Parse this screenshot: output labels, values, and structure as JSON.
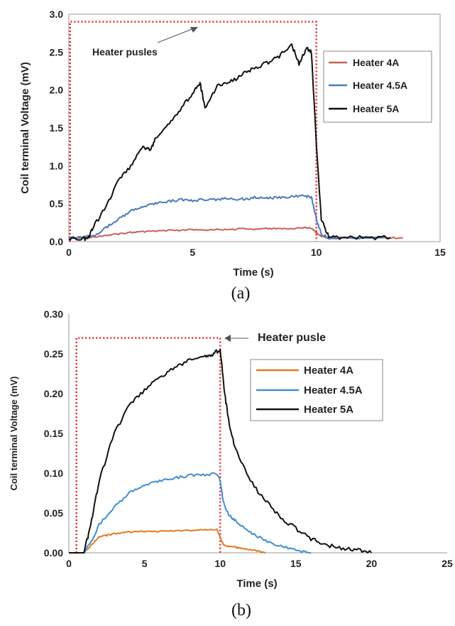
{
  "chart_data": [
    {
      "type": "line",
      "caption": "(a)",
      "xlabel": "Time (s)",
      "ylabel": "Coil terminal Voltage (mV)",
      "xlim": [
        0,
        15
      ],
      "ylim": [
        0,
        3.0
      ],
      "xticks": [
        0,
        5,
        10,
        15
      ],
      "yticks": [
        0.0,
        0.5,
        1.0,
        1.5,
        2.0,
        2.5,
        3.0
      ],
      "xtick_labels": [
        "0",
        "5",
        "10",
        "15"
      ],
      "ytick_labels": [
        "0.0",
        "0.5",
        "1.0",
        "1.5",
        "2.0",
        "2.5",
        "3.0"
      ],
      "legend_position": "right",
      "annotation": "Heater pusles",
      "pulse": {
        "x": [
          0.05,
          0.05,
          10.0,
          10.0
        ],
        "y": [
          0,
          2.9,
          2.9,
          0
        ],
        "color": "#e8262c"
      },
      "series": [
        {
          "name": "Heater 4A",
          "color": "#c8625a",
          "x": [
            0,
            0.5,
            1,
            1.5,
            2,
            2.5,
            3,
            3.5,
            4,
            4.5,
            5,
            5.5,
            6,
            6.5,
            7,
            7.5,
            8,
            8.5,
            9,
            9.5,
            9.8,
            10.0,
            10.2,
            10.5,
            11,
            12,
            13,
            13.5
          ],
          "y": [
            0.05,
            0.05,
            0.06,
            0.08,
            0.1,
            0.12,
            0.13,
            0.14,
            0.15,
            0.15,
            0.16,
            0.15,
            0.16,
            0.16,
            0.17,
            0.16,
            0.17,
            0.17,
            0.17,
            0.18,
            0.18,
            0.12,
            0.07,
            0.05,
            0.05,
            0.05,
            0.05,
            0.05
          ]
        },
        {
          "name": "Heater 4.5A",
          "color": "#4a7bbd",
          "x": [
            0,
            0.5,
            1,
            1.5,
            2,
            2.5,
            3,
            3.5,
            4,
            4.5,
            5,
            5.5,
            6,
            6.5,
            7,
            7.5,
            8,
            8.5,
            9,
            9.5,
            9.8,
            10.0,
            10.2,
            10.5,
            11,
            12,
            13
          ],
          "y": [
            0.05,
            0.05,
            0.08,
            0.18,
            0.3,
            0.4,
            0.46,
            0.5,
            0.53,
            0.55,
            0.54,
            0.56,
            0.55,
            0.57,
            0.56,
            0.58,
            0.57,
            0.58,
            0.59,
            0.6,
            0.59,
            0.3,
            0.1,
            0.05,
            0.05,
            0.05,
            0.05
          ]
        },
        {
          "name": "Heater 5A",
          "color": "#111111",
          "x": [
            0,
            0.5,
            0.8,
            1,
            1.5,
            2,
            2.5,
            3,
            3.3,
            3.5,
            4,
            4.5,
            5,
            5.3,
            5.5,
            6,
            6.5,
            7,
            7.5,
            8,
            8.5,
            9,
            9.3,
            9.6,
            9.8,
            10.0,
            10.2,
            10.5,
            11,
            12,
            13
          ],
          "y": [
            0.03,
            0.03,
            0.05,
            0.2,
            0.45,
            0.8,
            1.0,
            1.25,
            1.2,
            1.35,
            1.55,
            1.75,
            1.95,
            2.1,
            1.75,
            2.05,
            2.1,
            2.2,
            2.3,
            2.35,
            2.45,
            2.6,
            2.35,
            2.55,
            2.5,
            1.3,
            0.3,
            0.06,
            0.05,
            0.05,
            0.05
          ]
        }
      ]
    },
    {
      "type": "line",
      "caption": "(b)",
      "xlabel": "Time (s)",
      "ylabel": "Coil terminal Voltage (mV)",
      "xlim": [
        0,
        25
      ],
      "ylim": [
        0,
        0.3
      ],
      "xticks": [
        0,
        5,
        10,
        15,
        20,
        25
      ],
      "yticks": [
        0.0,
        0.05,
        0.1,
        0.15,
        0.2,
        0.25,
        0.3
      ],
      "xtick_labels": [
        "0",
        "5",
        "10",
        "15",
        "20",
        "25"
      ],
      "ytick_labels": [
        "0.00",
        "0.05",
        "0.10",
        "0.15",
        "0.20",
        "0.25",
        "0.30"
      ],
      "legend_position": "right",
      "annotation": "Heater pusle",
      "pulse": {
        "x": [
          0.5,
          0.5,
          10.0,
          10.0
        ],
        "y": [
          0,
          0.27,
          0.27,
          0
        ],
        "color": "#e8262c"
      },
      "series": [
        {
          "name": "Heater 4A",
          "color": "#e07b24",
          "x": [
            0,
            1,
            1.5,
            2,
            2.5,
            3,
            4,
            5,
            6,
            7,
            8,
            9,
            9.8,
            10.0,
            10.2,
            10.5,
            11,
            11.5,
            12,
            12.5,
            13
          ],
          "y": [
            0,
            0,
            0.01,
            0.02,
            0.022,
            0.024,
            0.026,
            0.027,
            0.027,
            0.028,
            0.028,
            0.029,
            0.029,
            0.02,
            0.01,
            0.008,
            0.007,
            0.005,
            0.004,
            0.002,
            0.0
          ]
        },
        {
          "name": "Heater 4.5A",
          "color": "#3e8fcf",
          "x": [
            0,
            1,
            1.5,
            2,
            3,
            4,
            5,
            6,
            7,
            8,
            9,
            9.8,
            10.0,
            10.2,
            10.5,
            11,
            12,
            13,
            14,
            15,
            16
          ],
          "y": [
            0,
            0,
            0.015,
            0.035,
            0.058,
            0.075,
            0.085,
            0.09,
            0.094,
            0.097,
            0.098,
            0.1,
            0.09,
            0.065,
            0.05,
            0.04,
            0.025,
            0.015,
            0.008,
            0.003,
            0.0
          ]
        },
        {
          "name": "Heater 5A",
          "color": "#111111",
          "x": [
            0,
            1,
            1.5,
            2,
            3,
            4,
            5,
            6,
            7,
            8,
            9,
            9.5,
            10.0,
            10.3,
            10.6,
            11,
            12,
            13,
            14,
            15,
            16,
            17,
            18,
            19,
            20
          ],
          "y": [
            0,
            0,
            0.04,
            0.09,
            0.15,
            0.185,
            0.205,
            0.22,
            0.232,
            0.242,
            0.248,
            0.25,
            0.255,
            0.2,
            0.16,
            0.13,
            0.09,
            0.065,
            0.045,
            0.03,
            0.018,
            0.01,
            0.006,
            0.004,
            0.0
          ]
        }
      ]
    }
  ]
}
